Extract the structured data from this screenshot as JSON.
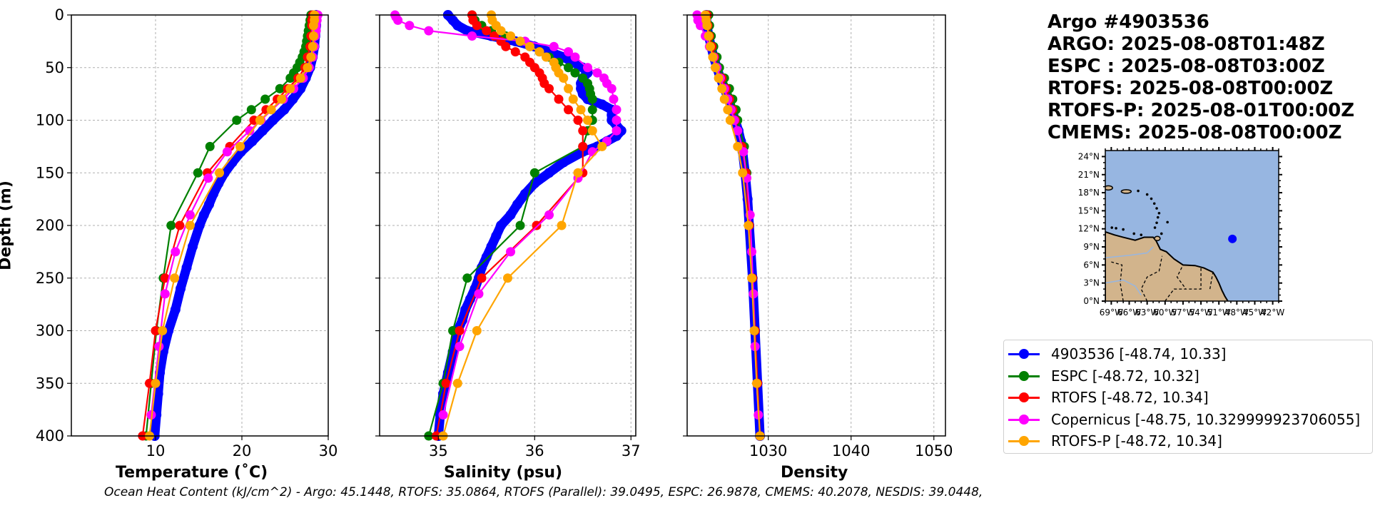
{
  "title_block": {
    "lines": [
      "Argo #4903536",
      "ARGO: 2025-08-08T01:48Z",
      "ESPC : 2025-08-08T03:00Z",
      "RTOFS: 2025-08-08T00:00Z",
      "RTOFS-P: 2025-08-01T00:00Z",
      "CMEMS: 2025-08-08T00:00Z"
    ]
  },
  "footer": {
    "ohc_text": "Ocean Heat Content (kJ/cm^2) - Argo: 45.1448,  RTOFS: 35.0864,  RTOFS (Parallel): 39.0495,  ESPC: 26.9878,  CMEMS: 40.2078,  NESDIS: 39.0448,"
  },
  "legend": [
    {
      "label": "4903536 [-48.74, 10.33]",
      "color": "#0000ff"
    },
    {
      "label": "ESPC [-48.72, 10.32]",
      "color": "#008000"
    },
    {
      "label": "RTOFS [-48.72, 10.34]",
      "color": "#ff0000"
    },
    {
      "label": "Copernicus [-48.75, 10.329999923706055]",
      "color": "#ff00ff"
    },
    {
      "label": "RTOFS-P [-48.72, 10.34]",
      "color": "#ffa500"
    }
  ],
  "map": {
    "lat_ticks": [
      "24°N",
      "21°N",
      "18°N",
      "15°N",
      "12°N",
      "9°N",
      "6°N",
      "3°N",
      "0°N"
    ],
    "lon_ticks": [
      "69°W",
      "66°W",
      "63°W",
      "60°W",
      "57°W",
      "54°W",
      "51°W",
      "48°W",
      "45°W",
      "42°W"
    ],
    "lon_range": [
      -70,
      -41
    ],
    "lat_range": [
      0,
      25
    ],
    "float_position": {
      "lon": -48.74,
      "lat": 10.33
    },
    "ocean_color": "#97b6e1",
    "land_color": "#d2b48c",
    "marker_color": "#0000ff"
  },
  "chart_data": [
    {
      "type": "line",
      "panel": "temperature",
      "xlabel": "Temperature (˚C)",
      "ylabel": "Depth (m)",
      "xlim": [
        0.25,
        30
      ],
      "ylim": [
        400,
        0
      ],
      "x_ticks": [
        "10",
        "20",
        "30"
      ],
      "x_tick_values": [
        10,
        20,
        30
      ],
      "y_ticks": [
        "0",
        "50",
        "100",
        "150",
        "200",
        "250",
        "300",
        "350",
        "400"
      ],
      "y_tick_values": [
        0,
        50,
        100,
        150,
        200,
        250,
        300,
        350,
        400
      ],
      "grid": true,
      "series": [
        {
          "name": "4903536",
          "color": "#0000ff",
          "dense": true,
          "depth": [
            0,
            10,
            20,
            30,
            40,
            50,
            60,
            70,
            80,
            90,
            100,
            110,
            120,
            130,
            140,
            150,
            160,
            170,
            180,
            190,
            200,
            220,
            240,
            260,
            280,
            300,
            320,
            340,
            360,
            380,
            400
          ],
          "values": [
            28.6,
            28.6,
            28.5,
            28.4,
            28.2,
            27.9,
            27.4,
            26.8,
            25.9,
            24.9,
            23.6,
            22.4,
            21.2,
            19.9,
            18.9,
            18.0,
            17.3,
            16.7,
            16.2,
            15.6,
            15.1,
            14.3,
            13.6,
            12.9,
            12.3,
            11.5,
            10.9,
            10.5,
            10.3,
            10.1,
            9.9
          ]
        },
        {
          "name": "ESPC",
          "color": "#008000",
          "depth": [
            0,
            5,
            10,
            15,
            20,
            25,
            30,
            35,
            40,
            45,
            50,
            55,
            60,
            70,
            80,
            90,
            100,
            125,
            150,
            200,
            250,
            300,
            350,
            400
          ],
          "values": [
            28.0,
            27.9,
            27.8,
            27.7,
            27.6,
            27.5,
            27.4,
            27.2,
            27.0,
            26.7,
            26.4,
            26.0,
            25.6,
            24.4,
            22.7,
            21.1,
            19.4,
            16.3,
            14.9,
            11.8,
            10.9,
            10.1,
            9.5,
            8.9
          ]
        },
        {
          "name": "RTOFS",
          "color": "#ff0000",
          "depth": [
            0,
            5,
            10,
            20,
            30,
            40,
            50,
            60,
            70,
            80,
            90,
            100,
            125,
            150,
            200,
            250,
            300,
            350,
            400
          ],
          "values": [
            28.2,
            28.1,
            28.1,
            28.0,
            27.9,
            27.6,
            27.3,
            26.5,
            25.3,
            24.1,
            22.8,
            21.4,
            18.6,
            16.0,
            12.8,
            11.1,
            10.0,
            9.3,
            8.5
          ]
        },
        {
          "name": "Copernicus",
          "color": "#ff00ff",
          "depth": [
            0,
            5,
            10,
            15,
            20,
            30,
            40,
            50,
            60,
            70,
            80,
            100,
            110,
            130,
            155,
            190,
            225,
            265,
            315,
            380
          ],
          "values": [
            28.8,
            28.7,
            28.6,
            28.6,
            28.5,
            28.4,
            28.2,
            27.8,
            27.1,
            26.0,
            24.8,
            22.2,
            20.9,
            18.3,
            16.1,
            14.0,
            12.3,
            11.1,
            10.4,
            9.5
          ]
        },
        {
          "name": "RTOFS-P",
          "color": "#ffa500",
          "depth": [
            0,
            5,
            10,
            20,
            30,
            40,
            50,
            60,
            70,
            80,
            90,
            100,
            125,
            150,
            200,
            250,
            300,
            350,
            400
          ],
          "values": [
            28.4,
            28.4,
            28.3,
            28.3,
            28.2,
            28.0,
            27.6,
            26.8,
            25.6,
            24.6,
            23.4,
            22.1,
            19.8,
            17.4,
            14.0,
            12.2,
            10.8,
            10.0,
            9.3
          ]
        }
      ]
    },
    {
      "type": "line",
      "panel": "salinity",
      "xlabel": "Salinity (psu)",
      "xlim": [
        34.39,
        37.05
      ],
      "ylim": [
        400,
        0
      ],
      "x_ticks": [
        "35",
        "36",
        "37"
      ],
      "x_tick_values": [
        35,
        36,
        37
      ],
      "grid": true,
      "series": [
        {
          "name": "4903536",
          "color": "#0000ff",
          "dense": true,
          "depth": [
            0,
            5,
            10,
            15,
            20,
            25,
            30,
            35,
            40,
            45,
            50,
            55,
            60,
            65,
            70,
            75,
            80,
            85,
            90,
            95,
            100,
            105,
            110,
            115,
            120,
            125,
            130,
            140,
            150,
            160,
            170,
            180,
            190,
            200,
            210,
            220,
            230,
            240,
            250,
            260,
            270,
            280,
            290,
            300,
            320,
            340,
            360,
            380,
            400
          ],
          "values": [
            35.1,
            35.15,
            35.2,
            35.3,
            35.55,
            35.8,
            36.0,
            36.15,
            36.3,
            36.4,
            36.5,
            36.55,
            36.5,
            36.48,
            36.48,
            36.5,
            36.55,
            36.7,
            36.8,
            36.8,
            36.8,
            36.85,
            36.9,
            36.85,
            36.75,
            36.65,
            36.5,
            36.3,
            36.15,
            36.0,
            35.9,
            35.82,
            35.75,
            35.65,
            35.6,
            35.55,
            35.5,
            35.45,
            35.42,
            35.38,
            35.33,
            35.28,
            35.25,
            35.2,
            35.15,
            35.1,
            35.05,
            35.02,
            35.0
          ]
        },
        {
          "name": "ESPC",
          "color": "#008000",
          "depth": [
            0,
            5,
            10,
            15,
            20,
            25,
            30,
            35,
            40,
            45,
            50,
            55,
            60,
            65,
            70,
            75,
            80,
            90,
            100,
            110,
            125,
            150,
            200,
            250,
            300,
            350,
            400
          ],
          "values": [
            35.35,
            35.38,
            35.45,
            35.55,
            35.7,
            35.85,
            35.95,
            36.05,
            36.15,
            36.25,
            36.35,
            36.42,
            36.5,
            36.55,
            36.57,
            36.58,
            36.6,
            36.6,
            36.6,
            36.55,
            36.5,
            36.0,
            35.85,
            35.3,
            35.15,
            35.05,
            34.9
          ]
        },
        {
          "name": "RTOFS",
          "color": "#ff0000",
          "depth": [
            0,
            5,
            10,
            15,
            20,
            25,
            30,
            35,
            40,
            45,
            50,
            55,
            60,
            65,
            70,
            80,
            90,
            100,
            110,
            125,
            150,
            200,
            250,
            300,
            350,
            400
          ],
          "values": [
            35.35,
            35.36,
            35.4,
            35.5,
            35.58,
            35.65,
            35.7,
            35.8,
            35.9,
            35.95,
            36.0,
            36.05,
            36.08,
            36.1,
            36.15,
            36.25,
            36.35,
            36.45,
            36.5,
            36.5,
            36.5,
            36.02,
            35.45,
            35.22,
            35.08,
            34.98
          ]
        },
        {
          "name": "Copernicus",
          "color": "#ff00ff",
          "depth": [
            0,
            2,
            5,
            10,
            15,
            20,
            25,
            30,
            35,
            40,
            50,
            55,
            60,
            65,
            70,
            80,
            90,
            100,
            110,
            120,
            130,
            155,
            190,
            225,
            265,
            315,
            380
          ],
          "values": [
            34.55,
            34.56,
            34.58,
            34.7,
            34.9,
            35.35,
            35.9,
            36.2,
            36.35,
            36.42,
            36.55,
            36.65,
            36.72,
            36.75,
            36.8,
            36.82,
            36.85,
            36.85,
            36.85,
            36.75,
            36.6,
            36.45,
            36.15,
            35.75,
            35.42,
            35.22,
            35.05
          ]
        },
        {
          "name": "RTOFS-P",
          "color": "#ffa500",
          "depth": [
            0,
            5,
            10,
            15,
            20,
            25,
            30,
            35,
            40,
            45,
            50,
            55,
            60,
            70,
            80,
            90,
            100,
            110,
            125,
            150,
            200,
            250,
            300,
            350,
            400
          ],
          "values": [
            35.55,
            35.56,
            35.6,
            35.65,
            35.75,
            35.85,
            35.95,
            36.05,
            36.12,
            36.2,
            36.22,
            36.25,
            36.3,
            36.35,
            36.4,
            36.48,
            36.55,
            36.6,
            36.7,
            36.45,
            36.28,
            35.72,
            35.4,
            35.2,
            35.05
          ]
        }
      ]
    },
    {
      "type": "line",
      "panel": "density",
      "xlabel": "Density",
      "xlim": [
        1020.2,
        1051.4
      ],
      "ylim": [
        400,
        0
      ],
      "x_ticks": [
        "1030",
        "1040",
        "1050"
      ],
      "x_tick_values": [
        1030,
        1040,
        1050
      ],
      "grid": true,
      "series": [
        {
          "name": "4903536",
          "color": "#0000ff",
          "dense": true,
          "depth": [
            0,
            10,
            20,
            30,
            40,
            50,
            60,
            70,
            80,
            90,
            100,
            110,
            120,
            130,
            150,
            175,
            200,
            250,
            300,
            350,
            400
          ],
          "values": [
            1022.5,
            1022.6,
            1022.8,
            1023.1,
            1023.4,
            1023.8,
            1024.2,
            1024.7,
            1025.2,
            1025.6,
            1026.0,
            1026.4,
            1026.7,
            1026.9,
            1027.2,
            1027.5,
            1027.7,
            1028.1,
            1028.4,
            1028.7,
            1029.0
          ]
        },
        {
          "name": "ESPC",
          "color": "#008000",
          "depth": [
            0,
            10,
            20,
            30,
            40,
            50,
            60,
            70,
            80,
            90,
            100,
            125,
            150,
            200,
            250,
            300,
            350,
            400
          ],
          "values": [
            1022.8,
            1022.9,
            1023.1,
            1023.4,
            1023.8,
            1024.1,
            1024.7,
            1025.3,
            1025.7,
            1026.1,
            1026.3,
            1027.1,
            1027.4,
            1027.7,
            1028.1,
            1028.4,
            1028.7,
            1029.0
          ]
        },
        {
          "name": "RTOFS",
          "color": "#ff0000",
          "depth": [
            0,
            10,
            20,
            30,
            40,
            50,
            60,
            70,
            80,
            90,
            100,
            125,
            150,
            200,
            250,
            300,
            350,
            400
          ],
          "values": [
            1022.6,
            1022.7,
            1022.9,
            1023.2,
            1023.5,
            1023.8,
            1024.4,
            1024.9,
            1025.3,
            1025.7,
            1026.0,
            1026.8,
            1027.3,
            1027.7,
            1028.1,
            1028.4,
            1028.7,
            1029.0
          ]
        },
        {
          "name": "Copernicus",
          "color": "#ff00ff",
          "depth": [
            0,
            5,
            10,
            20,
            30,
            40,
            50,
            60,
            70,
            80,
            90,
            100,
            110,
            130,
            155,
            190,
            225,
            265,
            315,
            380
          ],
          "values": [
            1021.4,
            1021.5,
            1021.8,
            1022.4,
            1022.9,
            1023.4,
            1023.8,
            1024.2,
            1024.7,
            1025.1,
            1025.5,
            1025.9,
            1026.3,
            1027.0,
            1027.4,
            1027.8,
            1028.0,
            1028.2,
            1028.4,
            1028.8
          ]
        },
        {
          "name": "RTOFS-P",
          "color": "#ffa500",
          "depth": [
            0,
            5,
            10,
            20,
            30,
            40,
            50,
            60,
            70,
            80,
            90,
            100,
            125,
            150,
            200,
            250,
            300,
            350,
            400
          ],
          "values": [
            1022.4,
            1022.5,
            1022.6,
            1022.8,
            1023.0,
            1023.3,
            1023.6,
            1024.0,
            1024.4,
            1024.7,
            1025.1,
            1025.4,
            1026.3,
            1026.9,
            1027.6,
            1028.0,
            1028.3,
            1028.6,
            1029.0
          ]
        }
      ]
    }
  ]
}
